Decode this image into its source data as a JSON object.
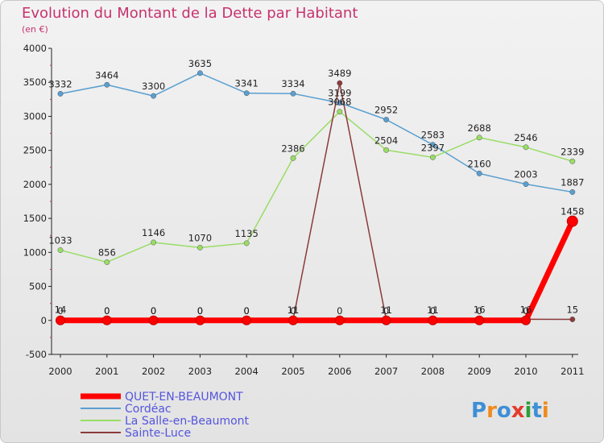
{
  "title": "Evolution du Montant de la Dette par Habitant",
  "subtitle": "(en €)",
  "logo": {
    "letters": [
      "P",
      "r",
      "o",
      "x",
      "i",
      "t",
      "i"
    ],
    "colors": [
      "#3d8fd6",
      "#f08a1c",
      "#3d8fd6",
      "#e23b2e",
      "#2e9e3a",
      "#3d8fd6",
      "#f08a1c"
    ]
  },
  "chart_data": {
    "type": "line",
    "title": "Evolution du Montant de la Dette par Habitant",
    "ylabel": "(en €)",
    "xlabel": "",
    "ylim": [
      -500,
      4000
    ],
    "yticks": [
      -500,
      0,
      500,
      1000,
      1500,
      2000,
      2500,
      3000,
      3500,
      4000
    ],
    "categories": [
      "2000",
      "2001",
      "2002",
      "2003",
      "2004",
      "2005",
      "2006",
      "2007",
      "2008",
      "2009",
      "2010",
      "2011"
    ],
    "grid": false,
    "legend_position": "bottom-left",
    "series": [
      {
        "name": "QUET-EN-BEAUMONT",
        "color": "#ff0000",
        "values": [
          0,
          0,
          0,
          0,
          0,
          0,
          0,
          0,
          0,
          0,
          0,
          1458
        ],
        "labels": [
          "0",
          "0",
          "0",
          "0",
          "0",
          "0",
          "0",
          "0",
          "0",
          "0",
          "0",
          "1458"
        ]
      },
      {
        "name": "Cordéac",
        "color": "#5a9fd0",
        "values": [
          3332,
          3464,
          3300,
          3635,
          3341,
          3334,
          3199,
          2952,
          2583,
          2160,
          2003,
          1887
        ],
        "labels": [
          "3332",
          "3464",
          "3300",
          "3635",
          "3341",
          "3334",
          "3199",
          "2952",
          "2583",
          "2160",
          "2003",
          "1887"
        ]
      },
      {
        "name": "La Salle-en-Beaumont",
        "color": "#99dd66",
        "values": [
          1033,
          856,
          1146,
          1070,
          1135,
          2386,
          3068,
          2504,
          2397,
          2688,
          2546,
          2339
        ],
        "labels": [
          "1033",
          "856",
          "1146",
          "1070",
          "1135",
          "2386",
          "3068",
          "2504",
          "2397",
          "2688",
          "2546",
          "2339"
        ]
      },
      {
        "name": "Sainte-Luce",
        "color": "#8b3a3a",
        "values": [
          14,
          0,
          0,
          0,
          0,
          11,
          3489,
          11,
          11,
          16,
          16,
          15
        ],
        "labels": [
          "14",
          "0",
          "0",
          "0",
          "0",
          "11",
          "3489",
          "11",
          "11",
          "16",
          "16",
          "15"
        ]
      }
    ]
  }
}
